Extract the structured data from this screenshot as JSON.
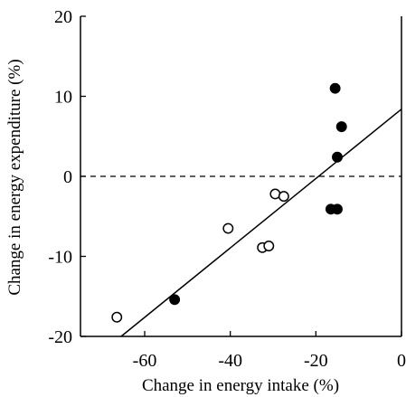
{
  "chart_data": {
    "type": "scatter",
    "title": "",
    "xlabel": "Change in energy intake (%)",
    "ylabel": "Change in energy expenditure (%)",
    "xlim": [
      -75,
      0
    ],
    "ylim": [
      -20,
      20
    ],
    "xticks": [
      -60,
      -40,
      -20,
      0
    ],
    "yticks": [
      20,
      10,
      0,
      -10,
      -20
    ],
    "xtick_labels": [
      "-60",
      "-40",
      "-20",
      "0"
    ],
    "ytick_labels": [
      "20",
      "10",
      "0",
      "-10",
      "-20"
    ],
    "grid": false,
    "legend": "none",
    "reference_line": {
      "y": 0,
      "style": "dashed"
    },
    "series": [
      {
        "marker": "open-circle",
        "points": [
          {
            "x": -66.5,
            "y": -17.6
          },
          {
            "x": -40.5,
            "y": -6.5
          },
          {
            "x": -32.5,
            "y": -8.9
          },
          {
            "x": -31.0,
            "y": -8.7
          },
          {
            "x": -29.5,
            "y": -2.2
          },
          {
            "x": -27.5,
            "y": -2.5
          }
        ]
      },
      {
        "marker": "filled-circle",
        "points": [
          {
            "x": -53.0,
            "y": -15.4
          },
          {
            "x": -16.5,
            "y": -4.1
          },
          {
            "x": -15.0,
            "y": -4.1
          },
          {
            "x": -15.5,
            "y": 11.0
          },
          {
            "x": -14.0,
            "y": 6.2
          },
          {
            "x": -15.0,
            "y": 2.4
          }
        ]
      }
    ],
    "fit_line": {
      "from": {
        "x": -65.5,
        "y": -20
      },
      "to": {
        "x": 0,
        "y": 8.4
      }
    },
    "colors": {
      "axis": "#000000",
      "marker": "#000000",
      "background": "#ffffff"
    }
  }
}
